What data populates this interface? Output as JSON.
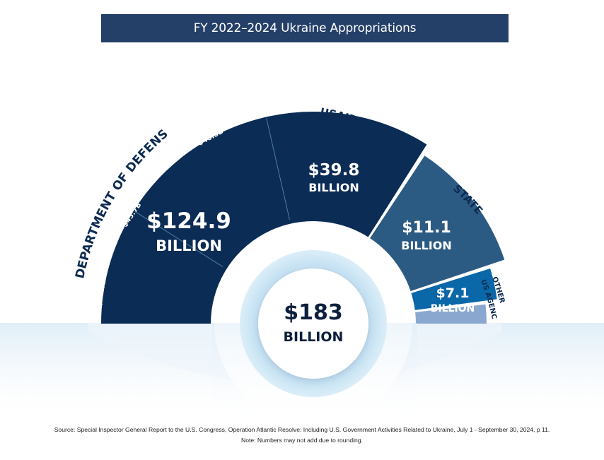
{
  "header": {
    "title": "FY 2022–2024 Ukraine Appropriations"
  },
  "chart_data": {
    "type": "pie",
    "title": "FY 2022–2024 Ukraine Appropriations",
    "total": {
      "value": 183,
      "amount": "$183",
      "unit": "BILLION"
    },
    "slices": [
      {
        "name": "DEPARTMENT OF DEFENSE",
        "value": 124.9,
        "amount": "$124.9",
        "unit": "BILLION",
        "color": "#0b2c55"
      },
      {
        "name": "USAID",
        "value": 39.8,
        "amount": "$39.8",
        "unit": "BILLION",
        "color": "#2b5b82"
      },
      {
        "name": "STATE",
        "value": 11.1,
        "amount": "$11.1",
        "unit": "BILLION",
        "color": "#0a67a8"
      },
      {
        "name": "OTHER US AGENCIES",
        "value": 7.1,
        "amount": "$7.1",
        "unit": "BILLION",
        "color": "#8aa8cf"
      }
    ],
    "dod_breakdown": [
      {
        "name": "USAI",
        "amount": "$32.7B",
        "value": 32.7
      },
      {
        "name": "REPLENISHMENT OF STOCK",
        "amount": "$45.7B",
        "value": 45.7
      },
      {
        "name": "USEUCOM/EDI",
        "amount": "$46.5B",
        "value": 46.5
      }
    ]
  },
  "footer": {
    "source": "Source: Special Inspector General Report to the U.S. Congress, Operation Atlantic Resolve: Including U.S. Government Activities Related to Ukraine, July 1 - September 30, 2024, p 11.",
    "note": "Note: Numbers may not add due to rounding."
  }
}
